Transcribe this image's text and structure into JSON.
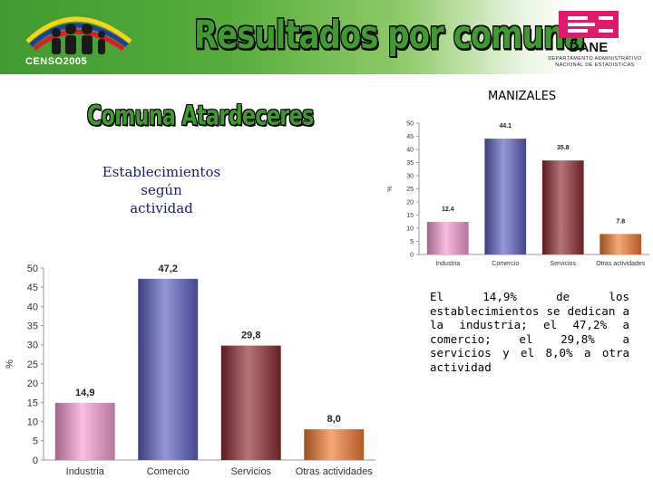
{
  "header": {
    "title": "Resultados por comuna",
    "censo_label": "CENSO2005",
    "dane_label": "DANE",
    "dane_subtitle_line1": "DEPARTAMENTO ADMINISTRATIVO",
    "dane_subtitle_line2": "NACIONAL DE ESTADISTICAS",
    "colors": {
      "green": "#3f9a2f",
      "dane_magenta": "#e2186c"
    }
  },
  "city": "MANIZALES",
  "comuna_title": "Comuna Atardeceres",
  "subtitle_line1": "Establecimientos según",
  "subtitle_line2": "actividad",
  "paragraph": "El 14,9% de los establecimientos se dedican a la industria; el 47,2% a comercio; el 29,8% a servicios y el 8,0% a otra actividad",
  "chart_data": [
    {
      "type": "bar",
      "ylabel": "%",
      "ylim": [
        0,
        50
      ],
      "yticks": [
        "0",
        "5",
        "10",
        "15",
        "20",
        "25",
        "30",
        "35",
        "40",
        "45",
        "50"
      ],
      "categories": [
        "Industria",
        "Comercio",
        "Servicios",
        "Otras actividades"
      ],
      "values": [
        14.9,
        47.2,
        29.8,
        8.0
      ],
      "labels": [
        "14,9",
        "47,2",
        "29,8",
        "8,0"
      ],
      "colors": [
        "#f49ad0",
        "#5a5fbf",
        "#8c2a2e",
        "#f07830"
      ]
    },
    {
      "type": "bar",
      "ylabel": "%",
      "ylim": [
        0,
        50
      ],
      "yticks": [
        "0",
        "5",
        "10",
        "15",
        "20",
        "25",
        "30",
        "35",
        "40",
        "45",
        "50"
      ],
      "categories": [
        "Industria",
        "Comercio",
        "Servicios",
        "Otras actividades"
      ],
      "values": [
        12.4,
        44.1,
        35.8,
        7.8
      ],
      "labels": [
        "12.4",
        "44.1",
        "35.8",
        "7.8"
      ],
      "colors": [
        "#f49ad0",
        "#5a5fbf",
        "#8c2a2e",
        "#f07830"
      ]
    }
  ]
}
